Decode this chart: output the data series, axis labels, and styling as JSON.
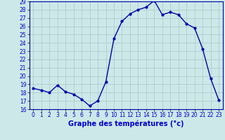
{
  "x": [
    0,
    1,
    2,
    3,
    4,
    5,
    6,
    7,
    8,
    9,
    10,
    11,
    12,
    13,
    14,
    15,
    16,
    17,
    18,
    19,
    20,
    21,
    22,
    23
  ],
  "y": [
    18.5,
    18.3,
    18.0,
    18.9,
    18.1,
    17.8,
    17.2,
    16.4,
    17.0,
    19.3,
    24.5,
    26.6,
    27.5,
    28.0,
    28.3,
    29.1,
    27.4,
    27.7,
    27.4,
    26.3,
    25.8,
    23.3,
    19.7,
    17.1
  ],
  "line_color": "#0000aa",
  "marker": "o",
  "markersize": 2,
  "linewidth": 1.0,
  "xlabel": "Graphe des températures (°c)",
  "xlabel_fontsize": 7,
  "xlabel_color": "#0000cc",
  "xlabel_fontweight": "bold",
  "tick_label_color": "#0000cc",
  "tick_label_fontsize": 5.5,
  "ylim": [
    16,
    29
  ],
  "xlim": [
    -0.5,
    23.5
  ],
  "yticks": [
    16,
    17,
    18,
    19,
    20,
    21,
    22,
    23,
    24,
    25,
    26,
    27,
    28,
    29
  ],
  "xticks": [
    0,
    1,
    2,
    3,
    4,
    5,
    6,
    7,
    8,
    9,
    10,
    11,
    12,
    13,
    14,
    15,
    16,
    17,
    18,
    19,
    20,
    21,
    22,
    23
  ],
  "background_color": "#cde8e8",
  "grid_color": "#aac8c8",
  "grid_linewidth": 0.5
}
